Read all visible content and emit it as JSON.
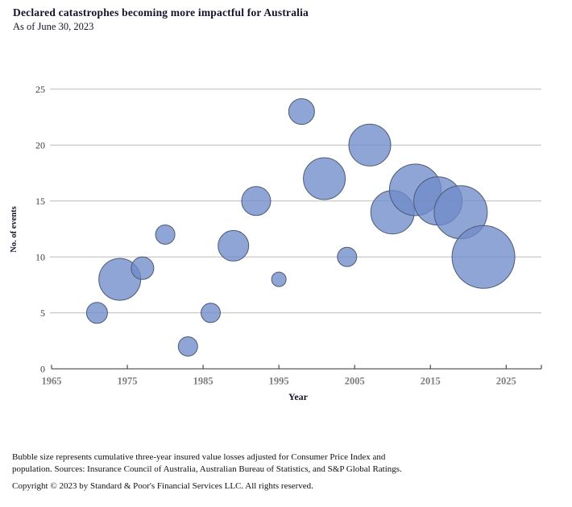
{
  "header": {
    "title": "Declared catastrophes becoming more impactful for Australia",
    "subtitle": "As of June 30, 2023"
  },
  "chart_data": {
    "type": "scatter",
    "subtype": "bubble",
    "title": "Declared catastrophes becoming more impactful for Australia",
    "subtitle": "As of June 30, 2023",
    "xlabel": "Year",
    "ylabel": "No. of events",
    "x_ticks": [
      1965,
      1975,
      1985,
      1995,
      2005,
      2015,
      2025
    ],
    "y_ticks": [
      0,
      5,
      10,
      15,
      20,
      25
    ],
    "xlim": [
      1965,
      2029
    ],
    "ylim": [
      0,
      25
    ],
    "grid": "horizontal",
    "legend": "none",
    "bubble_size_meaning": "cumulative three-year insured value losses adjusted for CPI and population (no numeric scale shown)",
    "points": [
      {
        "year": 1971,
        "events": 5,
        "r": 13
      },
      {
        "year": 1974,
        "events": 8,
        "r": 26
      },
      {
        "year": 1977,
        "events": 9,
        "r": 14
      },
      {
        "year": 1980,
        "events": 12,
        "r": 12
      },
      {
        "year": 1983,
        "events": 2,
        "r": 12
      },
      {
        "year": 1986,
        "events": 5,
        "r": 12
      },
      {
        "year": 1989,
        "events": 11,
        "r": 19
      },
      {
        "year": 1992,
        "events": 15,
        "r": 18
      },
      {
        "year": 1995,
        "events": 8,
        "r": 9
      },
      {
        "year": 1998,
        "events": 23,
        "r": 16
      },
      {
        "year": 2001,
        "events": 17,
        "r": 26
      },
      {
        "year": 2004,
        "events": 10,
        "r": 12
      },
      {
        "year": 2007,
        "events": 20,
        "r": 26
      },
      {
        "year": 2010,
        "events": 14,
        "r": 27
      },
      {
        "year": 2013,
        "events": 16,
        "r": 32
      },
      {
        "year": 2016,
        "events": 15,
        "r": 30
      },
      {
        "year": 2019,
        "events": 14,
        "r": 33
      },
      {
        "year": 2022,
        "events": 10,
        "r": 39
      }
    ],
    "colors": {
      "bubble_fill": "rgba(112,140,201,0.78)",
      "bubble_stroke": "#4d5a73",
      "gridline": "#bcbcbc",
      "axis_line": "#4a4a4a",
      "x_tick_label": "#7d7d7d",
      "y_tick_label": "#3c3c3c",
      "axis_title": "#14142b"
    }
  },
  "footer": {
    "note_lines": [
      "Bubble size represents cumulative three-year insured value losses adjusted for Consumer Price Index and",
      "population. Sources: Insurance Council of Australia, Australian Bureau of Statistics, and S&P Global Ratings."
    ],
    "copyright": "Copyright © 2023 by Standard & Poor's Financial Services LLC. All rights reserved."
  }
}
